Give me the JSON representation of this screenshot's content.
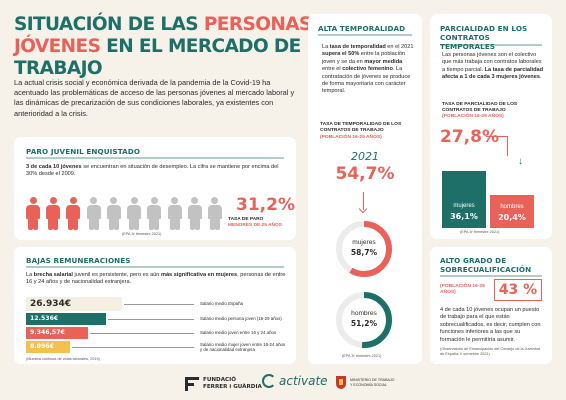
{
  "header": {
    "title_part1": "Situación de las ",
    "title_accent": "personas jóvenes",
    "title_part2": " en el mercado de trabajo",
    "intro": "La actual crisis social y económica derivada de la pandemia de la Covid-19 ha acentuado las problemáticas de acceso de las personas jóvenes al mercado laboral y las dinámicas de precarización de sus condiciones laborales, ya existentes con anterioridad a la crisis."
  },
  "paro": {
    "heading": "Paro juvenil enquistado",
    "desc_bold": "3 de cada 10 jóvenes",
    "desc_rest": " se encuentran en situación de desempleo. La cifra se mantiene por encima del 30% desde el 2009.",
    "people_shaded": 3,
    "people_total": 10,
    "value": "31,2%",
    "label1": "TASA DE PARO",
    "label2": "MENORES DE 25 AÑOS",
    "source": "(EPA 3r trimestre 2021)"
  },
  "remuneraciones": {
    "heading": "Bajas remuneraciones",
    "desc_a": "La ",
    "desc_b": "brecha salarial",
    "desc_c": " juvenil es persistente, pero es aún ",
    "desc_d": "más significativa en mujeres",
    "desc_e": ", personas de entre 16 y 24 años y de nacionalidad extranjera.",
    "bars": [
      {
        "value": "26.934€",
        "label": "Salario medio España",
        "color": "#f4efe0"
      },
      {
        "value": "12.536€",
        "label": "Salario medio persona joven (16-29 años)",
        "color": "#1d6f67"
      },
      {
        "value": "9.346,57€",
        "label": "Salario medio joven entre 16 y 24 años",
        "color": "#e8625a"
      },
      {
        "value": "8.096€",
        "label": "Salario medio mujer joven entre 16-24 años y de nacionalidad extranjera",
        "color": "#f2c14e"
      }
    ],
    "source": "(Muestra continua de vidas laborales, 2019)"
  },
  "temporalidad": {
    "heading": "Alta temporalidad",
    "desc_a": "La ",
    "desc_b": "tasa de temporalidad",
    "desc_c": " en el 2021 ",
    "desc_d": "supera el 50%",
    "desc_e": " entre la población joven y se da en ",
    "desc_f": "mayor medida",
    "desc_g": " entre el ",
    "desc_h": "colectivo femenino",
    "desc_i": ". La contratación de jóvenes se produce de forma mayoritaria con carácter temporal.",
    "sub_heading": "TASA DE TEMPORALIDAD DE LOS CONTRATOS DE TRABAJO",
    "sub_range": "(POBLACIÓN 16-29 AÑOS)",
    "year": "2021",
    "value": "54,7%",
    "women_label": "mujeres",
    "women_value": "58,7%",
    "women_pct": 58.7,
    "men_label": "hombres",
    "men_value": "51,2%",
    "men_pct": 51.2,
    "source": "(EPA 3r trimestre 2021)"
  },
  "parcialidad": {
    "heading": "Parcialidad en los contratos temporales",
    "desc_a": "Las personas jóvenes son el colectivo que más trabaja con contratos laborales a tiempo parcial. ",
    "desc_b": "La tasa de parcialidad afecta a 1 de cada 3 mujeres jóvenes",
    "desc_c": ".",
    "sub_heading": "TASA DE PARCIALIDAD DE LOS CONTRATOS DE TRABAJO",
    "sub_range": "(POBLACIÓN 16-29 AÑOS)",
    "value": "27,8%",
    "women_label": "mujeres",
    "women_value": "36,1%",
    "men_label": "hombres",
    "men_value": "20,4%",
    "source": "(EPA 3r trimestre 2021)"
  },
  "sobrecualificacion": {
    "heading": "Alto grado de sobrecualificación",
    "sub_range": "(POBLACIÓN 16-29 AÑOS)",
    "value": "43 %",
    "desc": "4 de cada 10 jóvenes ocupan un puesto de trabajo para el que están sobrecualificados, es decir, cumplen con funciones inferiores a las que su formación le permitiría asumir.",
    "source": "(Observatorio de Emancipación del Consejo de la Juventud de España, II semestre 2021)"
  },
  "footer": {
    "ff_line1": "FUNDACIÓ",
    "ff_line2": "FERRER i GUÀRDIA",
    "activate": "activate",
    "gov_line": "MINISTERIO DE TRABAJO Y ECONOMÍA SOCIAL"
  },
  "colors": {
    "teal": "#1d6f67",
    "coral": "#e8625a",
    "yellow": "#f2c14e",
    "grey": "#c2c2c2"
  }
}
